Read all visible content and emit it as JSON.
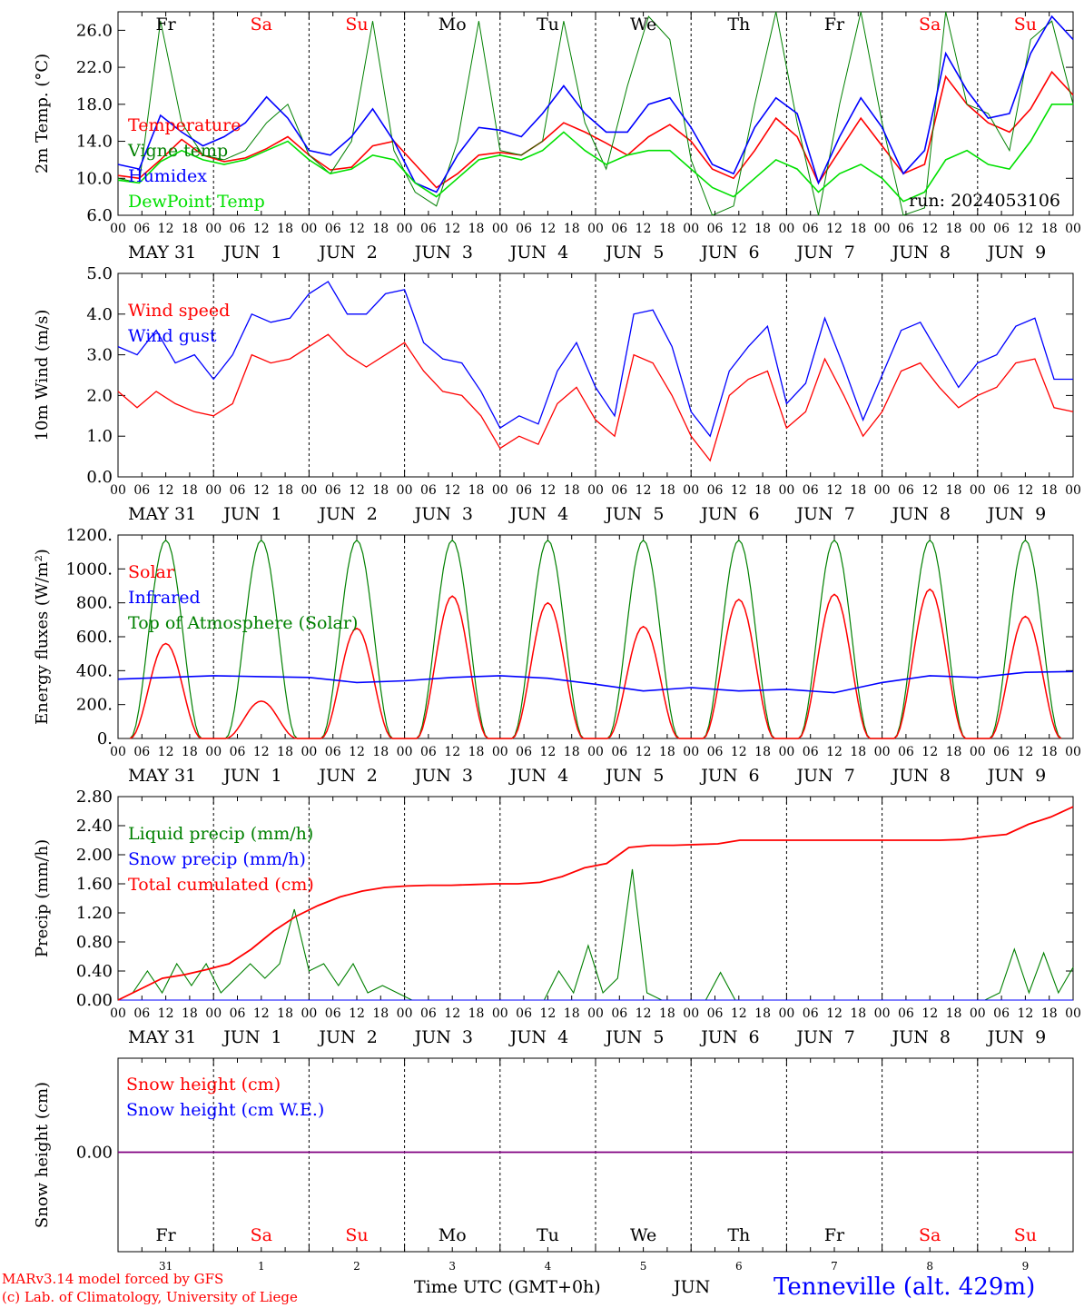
{
  "footer": {
    "model_line": "MARv3.14 model forced by GFS",
    "credit_line": "(c) Lab. of Climatology, University of Liege",
    "axis_title": "Time UTC (GMT+0h)",
    "month": "JUN",
    "station": "Tenneville (alt. 429m)"
  },
  "colors": {
    "red": "#ff0000",
    "green": "#008000",
    "blue": "#0000ff",
    "lightgreen": "#00e000",
    "purple": "#800080"
  },
  "chart_data": [
    {
      "type": "line",
      "id": "temp",
      "ylabel": "2m Temp. (°C)",
      "ylim": [
        6,
        28
      ],
      "yticks": [
        6.0,
        10.0,
        14.0,
        18.0,
        22.0,
        26.0
      ],
      "ytick_labels": [
        "6.0",
        "10.0",
        "14.0",
        "18.0",
        "22.0",
        "26.0"
      ],
      "annotation": "run: 2024053106",
      "weekday_labels": [
        "Fr",
        "Sa",
        "Su",
        "Mo",
        "Tu",
        "We",
        "Th",
        "Fr",
        "Sa",
        "Su"
      ],
      "series": [
        {
          "name": "Temperature",
          "color": "#ff0000",
          "values": [
            10.3,
            10.0,
            12.0,
            14.2,
            12.5,
            11.8,
            12.2,
            13.2,
            14.5,
            12.5,
            10.9,
            11.2,
            13.5,
            14.0,
            11.5,
            9.0,
            10.5,
            12.5,
            12.8,
            12.5,
            14.0,
            16.0,
            15.0,
            13.8,
            12.5,
            14.5,
            15.8,
            14.0,
            11.0,
            10.0,
            13.0,
            16.5,
            14.5,
            9.5,
            13.0,
            16.5,
            13.5,
            10.5,
            11.5,
            21.0,
            18.0,
            16.0,
            15.0,
            17.5,
            21.5,
            19.0
          ]
        },
        {
          "name": "Vigne temp",
          "color": "#008000",
          "values": [
            10.0,
            9.5,
            27.0,
            16.0,
            12.5,
            12.0,
            13.0,
            16.0,
            18.0,
            12.5,
            10.5,
            14.0,
            27.0,
            13.0,
            8.5,
            7.0,
            14.0,
            27.0,
            13.0,
            12.5,
            14.0,
            27.0,
            16.0,
            11.0,
            20.0,
            27.5,
            25.0,
            12.0,
            6.0,
            7.0,
            18.0,
            28.0,
            16.0,
            6.0,
            18.0,
            28.0,
            16.0,
            6.0,
            6.8,
            28.0,
            18.0,
            17.0,
            13.0,
            25.0,
            27.0,
            18.0
          ]
        },
        {
          "name": "Humidex",
          "color": "#0000ff",
          "values": [
            11.5,
            11.0,
            16.8,
            15.0,
            13.5,
            14.5,
            16.0,
            18.8,
            16.5,
            13.0,
            12.5,
            14.5,
            17.5,
            14.0,
            9.5,
            8.5,
            12.5,
            15.5,
            15.2,
            14.5,
            17.0,
            20.0,
            17.0,
            15.0,
            15.0,
            18.0,
            18.7,
            15.5,
            11.5,
            10.5,
            15.5,
            18.7,
            17.0,
            9.5,
            14.5,
            18.7,
            15.5,
            10.5,
            13.0,
            23.5,
            19.5,
            16.5,
            17.0,
            23.5,
            27.5,
            25.0
          ]
        },
        {
          "name": "DewPoint Temp",
          "color": "#00e000",
          "values": [
            9.8,
            9.5,
            11.8,
            13.0,
            12.0,
            11.5,
            12.0,
            13.0,
            14.0,
            12.0,
            10.5,
            11.0,
            12.5,
            12.0,
            9.5,
            8.0,
            10.0,
            12.0,
            12.5,
            12.0,
            13.0,
            15.0,
            13.0,
            11.5,
            12.5,
            13.0,
            13.0,
            11.0,
            9.0,
            8.0,
            10.0,
            12.0,
            11.0,
            8.5,
            10.5,
            11.5,
            10.0,
            7.5,
            8.5,
            12.0,
            13.0,
            11.5,
            11.0,
            14.0,
            18.0,
            18.0
          ]
        }
      ]
    },
    {
      "type": "line",
      "id": "wind",
      "ylabel": "10m Wind (m/s)",
      "ylim": [
        0,
        5
      ],
      "yticks": [
        0,
        1,
        2,
        3,
        4,
        5
      ],
      "ytick_labels": [
        "0.0",
        "1.0",
        "2.0",
        "3.0",
        "4.0",
        "5.0"
      ],
      "series": [
        {
          "name": "Wind speed",
          "color": "#ff0000",
          "values": [
            2.1,
            1.7,
            2.1,
            1.8,
            1.6,
            1.5,
            1.8,
            3.0,
            2.8,
            2.9,
            3.2,
            3.5,
            3.0,
            2.7,
            3.0,
            3.3,
            2.6,
            2.1,
            2.0,
            1.5,
            0.7,
            1.0,
            0.8,
            1.8,
            2.2,
            1.4,
            1.0,
            3.0,
            2.8,
            2.0,
            1.0,
            0.4,
            2.0,
            2.4,
            2.6,
            1.2,
            1.6,
            2.9,
            2.0,
            1.0,
            1.6,
            2.6,
            2.8,
            2.2,
            1.7,
            2.0,
            2.2,
            2.8,
            2.9,
            1.7,
            1.6
          ]
        },
        {
          "name": "Wind gust",
          "color": "#0000ff",
          "values": [
            3.2,
            3.0,
            3.6,
            2.8,
            3.0,
            2.4,
            3.0,
            4.0,
            3.8,
            3.9,
            4.5,
            4.8,
            4.0,
            4.0,
            4.5,
            4.6,
            3.3,
            2.9,
            2.8,
            2.1,
            1.2,
            1.5,
            1.3,
            2.6,
            3.3,
            2.2,
            1.5,
            4.0,
            4.1,
            3.2,
            1.6,
            1.0,
            2.6,
            3.2,
            3.7,
            1.8,
            2.3,
            3.9,
            2.7,
            1.4,
            2.5,
            3.6,
            3.8,
            3.0,
            2.2,
            2.8,
            3.0,
            3.7,
            3.9,
            2.4,
            2.4
          ]
        }
      ]
    },
    {
      "type": "line",
      "id": "energy",
      "ylabel": "Energy fluxes (W/m²)",
      "ylim": [
        0,
        1200
      ],
      "yticks": [
        0,
        200,
        400,
        600,
        800,
        1000,
        1200
      ],
      "ytick_labels": [
        "0.",
        "200.",
        "400.",
        "600.",
        "800.",
        "1000.",
        "1200."
      ],
      "series": [
        {
          "name": "Solar",
          "color": "#ff0000",
          "peaks": [
            560,
            220,
            650,
            840,
            800,
            660,
            820,
            850,
            880,
            720
          ]
        },
        {
          "name": "Infrared",
          "color": "#0000ff",
          "values": [
            350,
            360,
            370,
            365,
            360,
            330,
            340,
            360,
            370,
            355,
            320,
            280,
            300,
            280,
            290,
            270,
            330,
            370,
            360,
            390,
            395
          ]
        },
        {
          "name": "Top of Atmosphere (Solar)",
          "color": "#008000",
          "peaks": [
            1170,
            1170,
            1170,
            1170,
            1170,
            1170,
            1170,
            1170,
            1170,
            1170
          ]
        }
      ]
    },
    {
      "type": "line",
      "id": "precip",
      "ylabel": "Precip (mm/h)",
      "ylim": [
        0,
        2.8
      ],
      "yticks": [
        0,
        0.4,
        0.8,
        1.2,
        1.6,
        2.0,
        2.4,
        2.8
      ],
      "ytick_labels": [
        "0.00",
        "0.40",
        "0.80",
        "1.20",
        "1.60",
        "2.00",
        "2.40",
        "2.80"
      ],
      "series": [
        {
          "name": "Liquid precip (mm/h)",
          "color": "#008000",
          "values": [
            0,
            0.1,
            0.4,
            0.1,
            0.5,
            0.2,
            0.5,
            0.1,
            0.3,
            0.5,
            0.3,
            0.5,
            1.25,
            0.4,
            0.5,
            0.2,
            0.5,
            0.1,
            0.2,
            0.1,
            0,
            0,
            0,
            0,
            0,
            0,
            0,
            0,
            0,
            0,
            0.4,
            0.1,
            0.75,
            0.1,
            0.3,
            1.8,
            0.1,
            0,
            0,
            0,
            0,
            0.38,
            0,
            0,
            0,
            0,
            0,
            0,
            0,
            0,
            0,
            0,
            0,
            0,
            0,
            0,
            0,
            0,
            0,
            0,
            0.1,
            0.7,
            0.1,
            0.65,
            0.1,
            0.45
          ]
        },
        {
          "name": "Snow precip (mm/h)",
          "color": "#0000ff",
          "values": [
            0,
            0
          ]
        },
        {
          "name": "Total cumulated (cm)",
          "color": "#ff0000",
          "values": [
            0,
            0.15,
            0.3,
            0.35,
            0.42,
            0.5,
            0.7,
            0.95,
            1.15,
            1.3,
            1.42,
            1.5,
            1.55,
            1.57,
            1.58,
            1.58,
            1.59,
            1.6,
            1.6,
            1.62,
            1.7,
            1.82,
            1.88,
            2.1,
            2.13,
            2.13,
            2.14,
            2.15,
            2.2,
            2.2,
            2.2,
            2.2,
            2.2,
            2.2,
            2.2,
            2.2,
            2.2,
            2.2,
            2.21,
            2.25,
            2.28,
            2.42,
            2.52,
            2.66
          ]
        }
      ]
    },
    {
      "type": "line",
      "id": "snow",
      "ylabel": "Snow height (cm)",
      "ytick_labels": [
        "0.00"
      ],
      "day_numbers": [
        "31",
        "1",
        "2",
        "3",
        "4",
        "5",
        "6",
        "7",
        "8",
        "9"
      ],
      "weekday_labels": [
        "Fr",
        "Sa",
        "Su",
        "Mo",
        "Tu",
        "We",
        "Th",
        "Fr",
        "Sa",
        "Su"
      ],
      "series": [
        {
          "name": "Snow height (cm)",
          "color": "#ff0000",
          "values": [
            0,
            0
          ]
        },
        {
          "name": "Snow height (cm W.E.)",
          "color": "#0000ff",
          "values": [
            0,
            0
          ]
        }
      ]
    }
  ],
  "x_axis": {
    "hour_labels": [
      "00",
      "06",
      "12",
      "18"
    ],
    "final_label": "00",
    "date_labels": [
      "MAY 31",
      "JUN  1",
      "JUN  2",
      "JUN  3",
      "JUN  4",
      "JUN  5",
      "JUN  6",
      "JUN  7",
      "JUN  8",
      "JUN  9"
    ],
    "weekend_days": [
      1,
      2,
      8,
      9
    ]
  }
}
